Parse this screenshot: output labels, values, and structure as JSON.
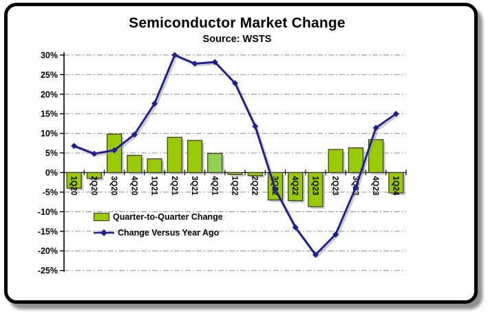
{
  "title": "Semiconductor Market Change",
  "subtitle": "Source: WSTS",
  "legend": {
    "bar_label": "Quarter-to-Quarter Change",
    "line_label": "Change Versus Year Ago"
  },
  "colors": {
    "bar_fill": "#99cc00",
    "bar_fill_light": "#92d050",
    "bar_stroke": "#333333",
    "line": "#1f1f8f",
    "grid": "#999999",
    "axis": "#000000",
    "shadow": "#9a9a9a"
  },
  "chart_data": {
    "type": "combo",
    "title": "Semiconductor Market Change",
    "subtitle": "Source: WSTS",
    "categories": [
      "1Q20",
      "2Q20",
      "3Q20",
      "4Q20",
      "1Q21",
      "2Q21",
      "3Q21",
      "4Q21",
      "1Q22",
      "2Q22",
      "3Q22",
      "4Q22",
      "1Q23",
      "2Q23",
      "3Q23",
      "4Q23",
      "1Q24"
    ],
    "series": [
      {
        "name": "Quarter-to-Quarter Change",
        "type": "bar",
        "values": [
          -4,
          -1.5,
          9.8,
          4.4,
          3.5,
          9,
          8.2,
          4.9,
          -0.5,
          -0.8,
          -7,
          -7.2,
          -8.7,
          5.9,
          6.3,
          8.4,
          -5.2
        ],
        "light_bar_indices": [
          7
        ]
      },
      {
        "name": "Change Versus Year Ago",
        "type": "line",
        "marker": "diamond",
        "values": [
          6.8,
          4.8,
          5.7,
          9.7,
          17.6,
          30,
          27.8,
          28.2,
          22.8,
          11.8,
          -4.3,
          -14,
          -21,
          -15.8,
          -3.8,
          11.4,
          15
        ]
      }
    ],
    "ylim": [
      -25,
      30
    ],
    "yticks": [
      30,
      25,
      20,
      15,
      10,
      5,
      0,
      -5,
      -10,
      -15,
      -20,
      -25
    ],
    "ytick_labels": [
      "30%",
      "25%",
      "20%",
      "15%",
      "10%",
      "5%",
      "0%",
      "-5%",
      "-10%",
      "-15%",
      "-20%",
      "-25%"
    ],
    "grid": "horizontal dash-dot gray",
    "legend_position": "inside left middle",
    "xlabel": "",
    "ylabel": ""
  }
}
